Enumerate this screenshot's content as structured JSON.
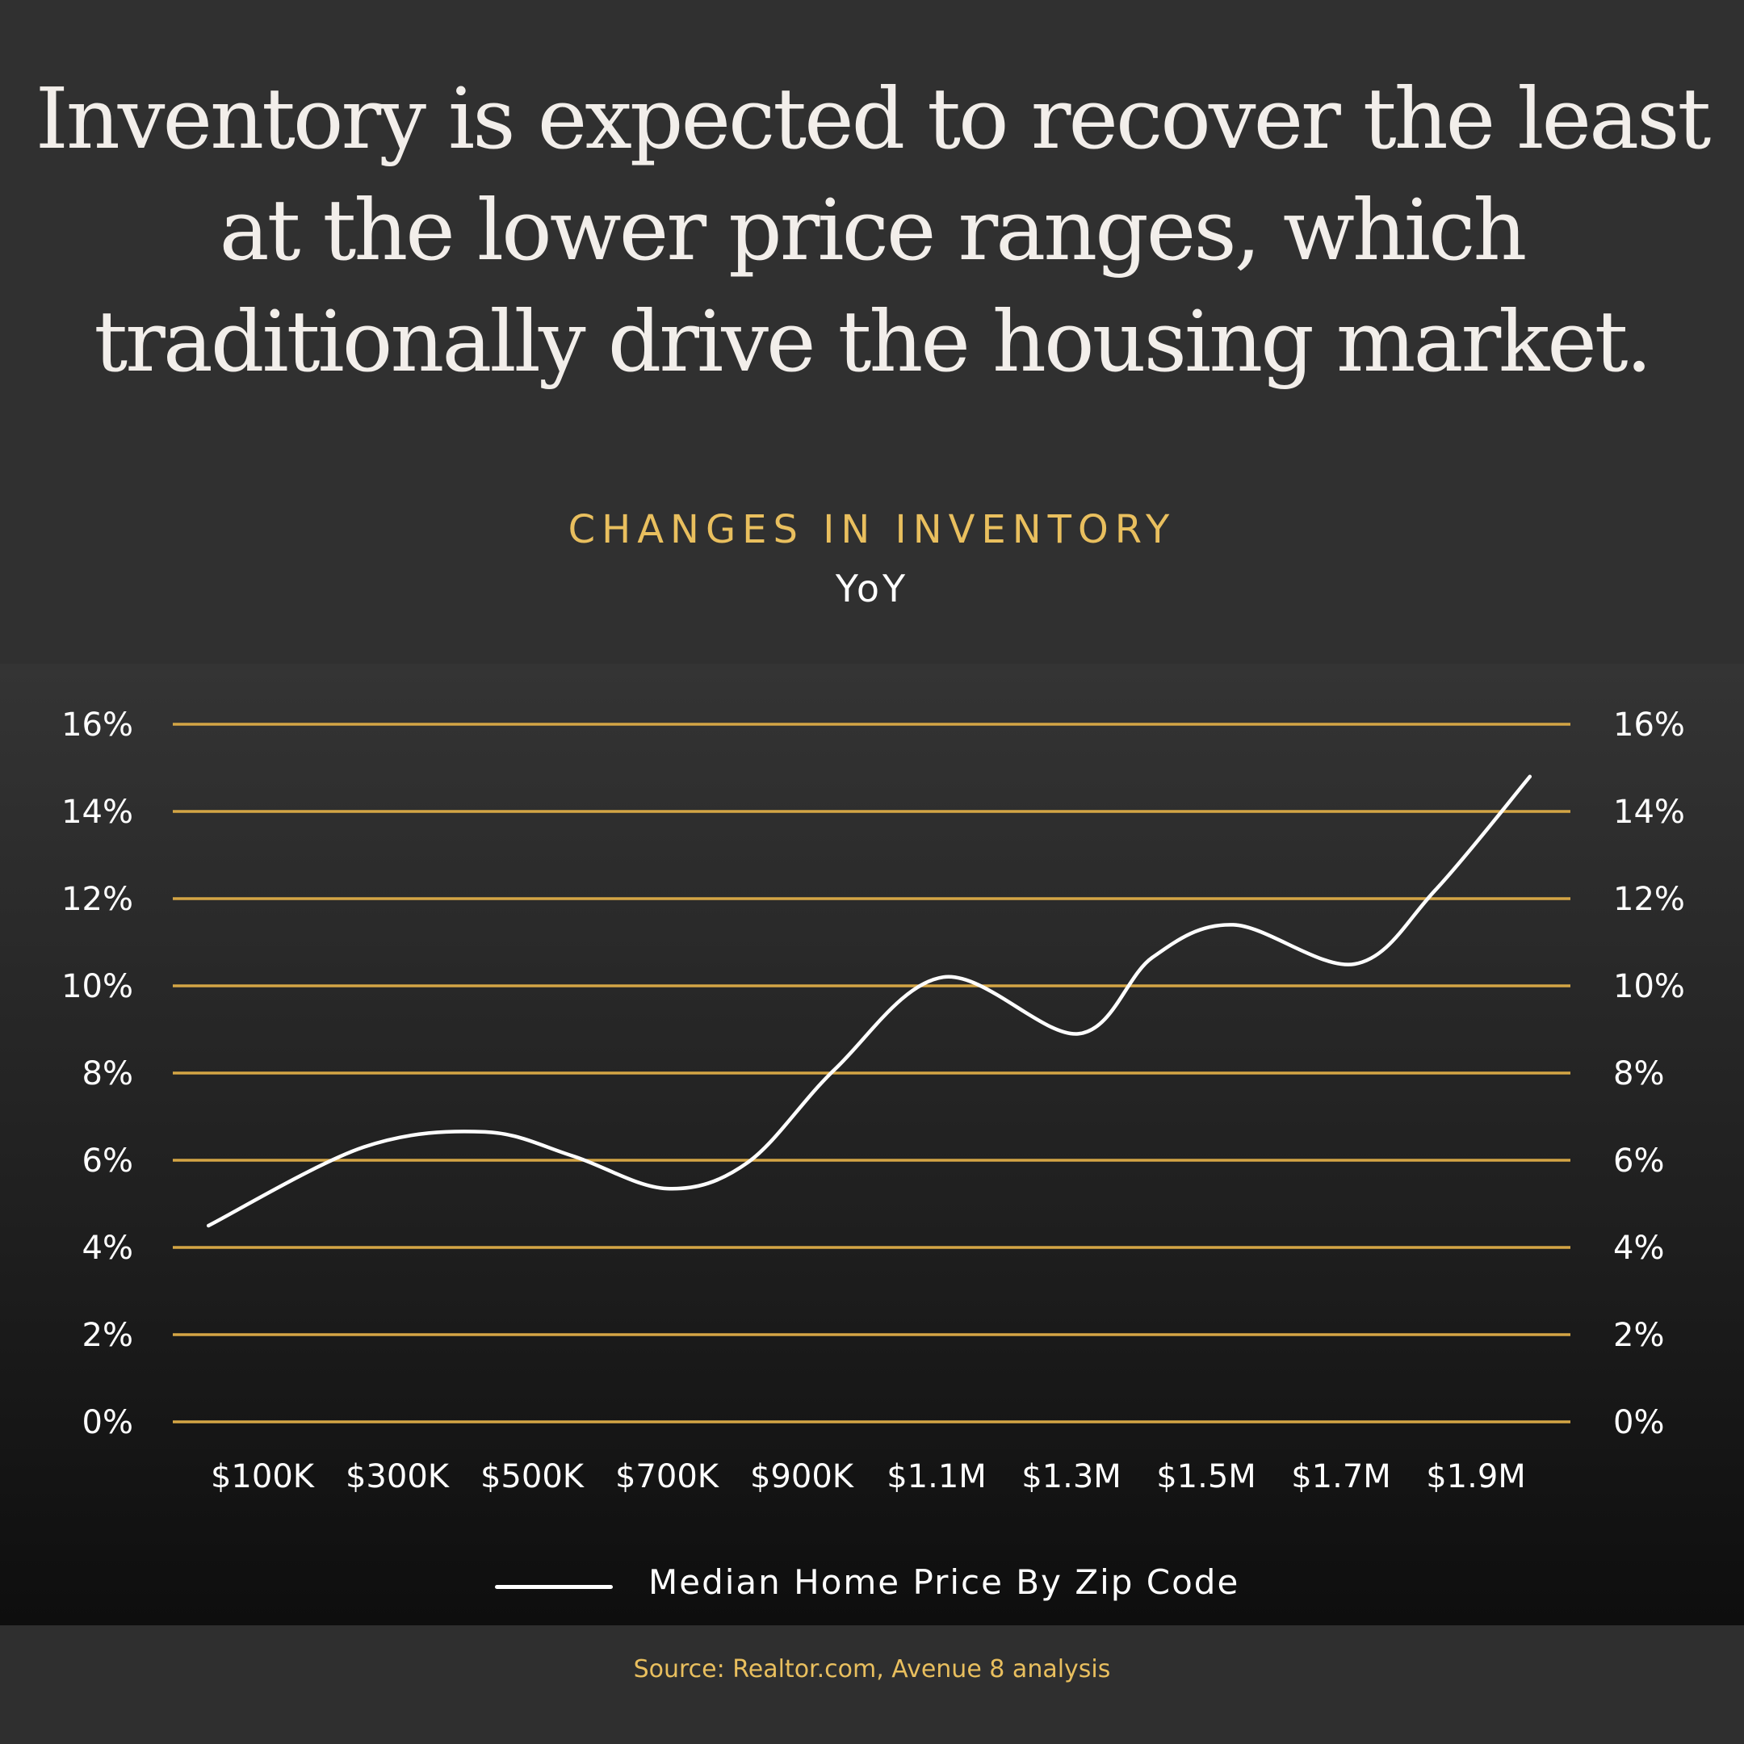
{
  "headline": "Inventory is expected to recover the least at the lower price ranges, which traditionally drive the housing market.",
  "colors": {
    "accent": "#e9bf5e",
    "grid": "#d4a545",
    "line": "#ffffff",
    "background": "#303030"
  },
  "chart_data": {
    "type": "line",
    "title": "CHANGES IN INVENTORY",
    "subtitle": "YoY",
    "xlabel": "",
    "ylabel": "",
    "x_tick_labels": [
      "$100K",
      "$300K",
      "$500K",
      "$700K",
      "$900K",
      "$1.1M",
      "$1.3M",
      "$1.5M",
      "$1.7M",
      "$1.9M"
    ],
    "x_tick_values": [
      0.1,
      0.3,
      0.5,
      0.7,
      0.9,
      1.1,
      1.3,
      1.5,
      1.7,
      1.9
    ],
    "x_units": "$M",
    "y_tick_labels": [
      "0%",
      "2%",
      "4%",
      "6%",
      "8%",
      "10%",
      "12%",
      "14%",
      "16%"
    ],
    "ylim": [
      0,
      16
    ],
    "grid": true,
    "dual_y_axis": true,
    "legend_position": "bottom",
    "series": [
      {
        "name": "Median Home Price By Zip Code",
        "x": [
          0.02,
          0.25,
          0.43,
          0.56,
          0.7,
          0.82,
          0.95,
          1.11,
          1.31,
          1.42,
          1.54,
          1.72,
          1.84,
          1.98
        ],
        "y": [
          4.5,
          6.3,
          6.65,
          6.1,
          5.35,
          5.95,
          8.1,
          10.2,
          8.9,
          10.65,
          11.4,
          10.5,
          12.2,
          14.8
        ]
      }
    ]
  },
  "source": "Source:  Realtor.com, Avenue 8 analysis"
}
